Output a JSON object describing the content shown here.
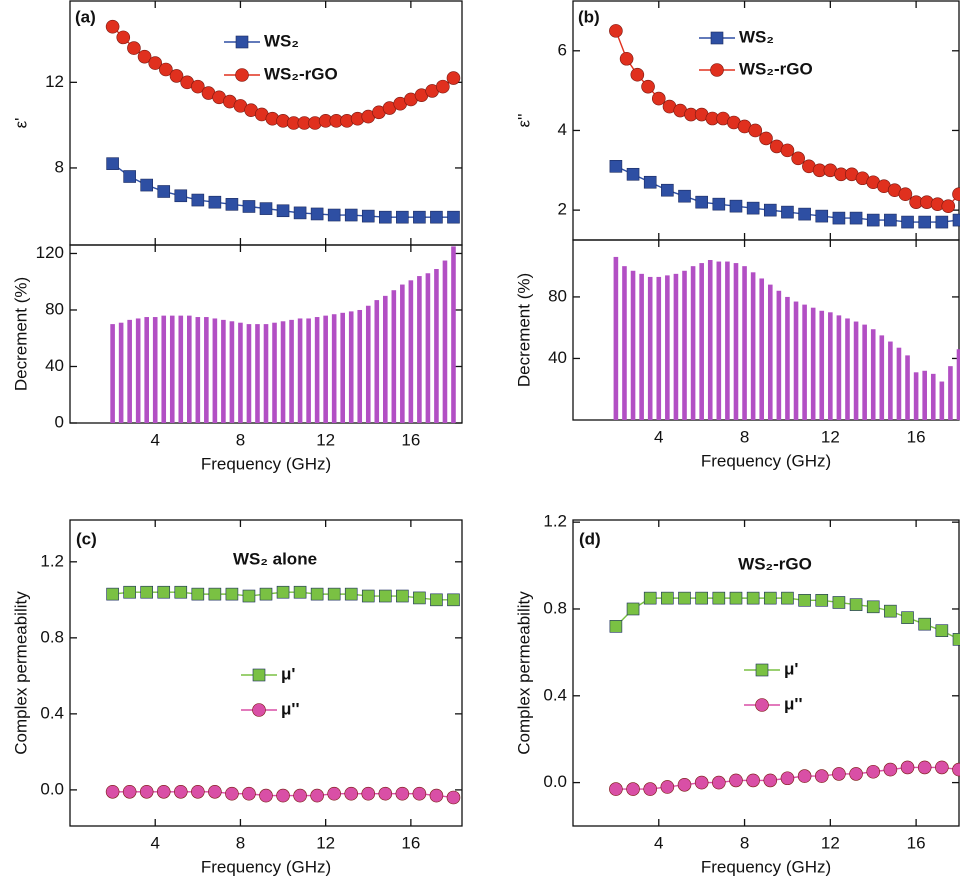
{
  "chart_data": [
    {
      "type": "line",
      "panel_label": "(a)",
      "ylabel": "ε'",
      "xlim": [
        0,
        18.4
      ],
      "ylim": [
        4.4,
        15.8
      ],
      "xticks": [
        4,
        8,
        12,
        16
      ],
      "xtick_labels": false,
      "yticks": [
        8,
        12
      ],
      "series": [
        {
          "name": "WS₂",
          "color": "#2e4fa3",
          "marker": "square",
          "x": [
            2,
            2.8,
            3.6,
            4.4,
            5.2,
            6,
            6.8,
            7.6,
            8.4,
            9.2,
            10,
            10.8,
            11.6,
            12.4,
            13.2,
            14,
            14.8,
            15.6,
            16.4,
            17.2,
            18
          ],
          "values": [
            8.2,
            7.6,
            7.2,
            6.9,
            6.7,
            6.5,
            6.4,
            6.3,
            6.2,
            6.1,
            6.0,
            5.9,
            5.85,
            5.8,
            5.8,
            5.75,
            5.7,
            5.7,
            5.7,
            5.7,
            5.7
          ]
        },
        {
          "name": "WS₂-rGO",
          "color": "#e0301e",
          "marker": "circle",
          "x": [
            2,
            2.5,
            3,
            3.5,
            4,
            4.5,
            5,
            5.5,
            6,
            6.5,
            7,
            7.5,
            8,
            8.5,
            9,
            9.5,
            10,
            10.5,
            11,
            11.5,
            12,
            12.5,
            13,
            13.5,
            14,
            14.5,
            15,
            15.5,
            16,
            16.5,
            17,
            17.5,
            18
          ],
          "values": [
            14.6,
            14.1,
            13.6,
            13.2,
            12.9,
            12.6,
            12.3,
            12.0,
            11.8,
            11.5,
            11.3,
            11.1,
            10.9,
            10.7,
            10.5,
            10.3,
            10.2,
            10.1,
            10.1,
            10.1,
            10.2,
            10.2,
            10.2,
            10.3,
            10.4,
            10.6,
            10.8,
            11.0,
            11.2,
            11.4,
            11.6,
            11.8,
            12.2
          ]
        }
      ]
    },
    {
      "type": "bar",
      "ylabel": "Decrement (%)",
      "xlabel": "Frequency (GHz)",
      "xlim": [
        0,
        18.4
      ],
      "ylim": [
        0,
        126
      ],
      "xticks": [
        4,
        8,
        12,
        16
      ],
      "xtick_labels": true,
      "yticks": [
        0,
        40,
        80,
        120
      ],
      "color": "#b24fc4",
      "x": [
        2,
        2.4,
        2.8,
        3.2,
        3.6,
        4,
        4.4,
        4.8,
        5.2,
        5.6,
        6,
        6.4,
        6.8,
        7.2,
        7.6,
        8,
        8.4,
        8.8,
        9.2,
        9.6,
        10,
        10.4,
        10.8,
        11.2,
        11.6,
        12,
        12.4,
        12.8,
        13.2,
        13.6,
        14,
        14.4,
        14.8,
        15.2,
        15.6,
        16,
        16.4,
        16.8,
        17.2,
        17.6,
        18
      ],
      "values": [
        70,
        71,
        73,
        74,
        75,
        75,
        76,
        76,
        76,
        76,
        75,
        75,
        74,
        73,
        72,
        71,
        70,
        70,
        70,
        71,
        72,
        73,
        74,
        74,
        75,
        76,
        77,
        78,
        79,
        80,
        83,
        87,
        90,
        94,
        98,
        101,
        104,
        106,
        109,
        115,
        125
      ]
    },
    {
      "type": "line",
      "panel_label": "(b)",
      "ylabel": "ε''",
      "xlim": [
        0,
        18
      ],
      "ylim": [
        1.25,
        7.25
      ],
      "xticks": [
        4,
        8,
        12,
        16
      ],
      "xtick_labels": false,
      "yticks": [
        2,
        4,
        6
      ],
      "series": [
        {
          "name": "WS₂",
          "color": "#2e4fa3",
          "marker": "square",
          "x": [
            2,
            2.8,
            3.6,
            4.4,
            5.2,
            6,
            6.8,
            7.6,
            8.4,
            9.2,
            10,
            10.8,
            11.6,
            12.4,
            13.2,
            14,
            14.8,
            15.6,
            16.4,
            17.2,
            18
          ],
          "values": [
            3.1,
            2.9,
            2.7,
            2.5,
            2.35,
            2.2,
            2.15,
            2.1,
            2.05,
            2.0,
            1.95,
            1.9,
            1.85,
            1.8,
            1.8,
            1.75,
            1.75,
            1.7,
            1.7,
            1.7,
            1.75
          ]
        },
        {
          "name": "WS₂-rGO",
          "color": "#e0301e",
          "marker": "circle",
          "x": [
            2,
            2.5,
            3,
            3.5,
            4,
            4.5,
            5,
            5.5,
            6,
            6.5,
            7,
            7.5,
            8,
            8.5,
            9,
            9.5,
            10,
            10.5,
            11,
            11.5,
            12,
            12.5,
            13,
            13.5,
            14,
            14.5,
            15,
            15.5,
            16,
            16.5,
            17,
            17.5,
            18
          ],
          "values": [
            6.5,
            5.8,
            5.4,
            5.1,
            4.8,
            4.6,
            4.5,
            4.4,
            4.4,
            4.3,
            4.3,
            4.2,
            4.1,
            4.0,
            3.8,
            3.6,
            3.5,
            3.3,
            3.1,
            3.0,
            3.0,
            2.9,
            2.9,
            2.8,
            2.7,
            2.6,
            2.5,
            2.4,
            2.2,
            2.2,
            2.15,
            2.1,
            2.4
          ]
        }
      ]
    },
    {
      "type": "bar",
      "ylabel": "Decrement (%)",
      "xlabel": "Frequency (GHz)",
      "xlim": [
        0,
        18
      ],
      "ylim": [
        0,
        117
      ],
      "xticks": [
        4,
        8,
        12,
        16
      ],
      "xtick_labels": true,
      "yticks": [
        40,
        80
      ],
      "color": "#b24fc4",
      "x": [
        2,
        2.4,
        2.8,
        3.2,
        3.6,
        4,
        4.4,
        4.8,
        5.2,
        5.6,
        6,
        6.4,
        6.8,
        7.2,
        7.6,
        8,
        8.4,
        8.8,
        9.2,
        9.6,
        10,
        10.4,
        10.8,
        11.2,
        11.6,
        12,
        12.4,
        12.8,
        13.2,
        13.6,
        14,
        14.4,
        14.8,
        15.2,
        15.6,
        16,
        16.4,
        16.8,
        17.2,
        17.6,
        18
      ],
      "values": [
        106,
        100,
        97,
        95,
        93,
        93,
        94,
        95,
        97,
        100,
        102,
        104,
        103,
        103,
        102,
        100,
        96,
        92,
        88,
        84,
        80,
        77,
        75,
        73,
        71,
        70,
        68,
        66,
        64,
        62,
        59,
        55,
        51,
        47,
        42,
        31,
        32,
        30,
        25,
        35,
        46
      ]
    },
    {
      "type": "line",
      "panel_label": "(c)",
      "title": "WS₂ alone",
      "ylabel": "Complex permeability",
      "xlabel": "Frequency (GHz)",
      "xlim": [
        0,
        18.4
      ],
      "ylim": [
        -0.19,
        1.42
      ],
      "xticks": [
        4,
        8,
        12,
        16
      ],
      "xtick_labels": true,
      "yticks": [
        {
          "value": 0,
          "label": "0.0"
        },
        0.4,
        0.8,
        1.2
      ],
      "series": [
        {
          "name": "μ'",
          "color": "#7ac143",
          "marker": "square",
          "x": [
            2,
            2.8,
            3.6,
            4.4,
            5.2,
            6,
            6.8,
            7.6,
            8.4,
            9.2,
            10,
            10.8,
            11.6,
            12.4,
            13.2,
            14,
            14.8,
            15.6,
            16.4,
            17.2,
            18
          ],
          "values": [
            1.03,
            1.04,
            1.04,
            1.04,
            1.04,
            1.03,
            1.03,
            1.03,
            1.02,
            1.03,
            1.04,
            1.04,
            1.03,
            1.03,
            1.03,
            1.02,
            1.02,
            1.02,
            1.01,
            1.0,
            1.0
          ]
        },
        {
          "name": "μ''",
          "color": "#d94fa6",
          "marker": "circle",
          "x": [
            2,
            2.8,
            3.6,
            4.4,
            5.2,
            6,
            6.8,
            7.6,
            8.4,
            9.2,
            10,
            10.8,
            11.6,
            12.4,
            13.2,
            14,
            14.8,
            15.6,
            16.4,
            17.2,
            18
          ],
          "values": [
            -0.01,
            -0.01,
            -0.01,
            -0.01,
            -0.01,
            -0.01,
            -0.01,
            -0.02,
            -0.02,
            -0.03,
            -0.03,
            -0.03,
            -0.03,
            -0.02,
            -0.02,
            -0.02,
            -0.02,
            -0.02,
            -0.02,
            -0.03,
            -0.04
          ]
        }
      ]
    },
    {
      "type": "line",
      "panel_label": "(d)",
      "title": "WS₂-rGO",
      "ylabel": "Complex permeability",
      "xlabel": "Frequency (GHz)",
      "xlim": [
        0,
        18
      ],
      "ylim": [
        -0.2,
        1.21
      ],
      "xticks": [
        4,
        8,
        12,
        16
      ],
      "xtick_labels": true,
      "yticks": [
        {
          "value": 0,
          "label": "0.0"
        },
        0.4,
        0.8,
        1.2
      ],
      "series": [
        {
          "name": "μ'",
          "color": "#7ac143",
          "marker": "square",
          "x": [
            2,
            2.8,
            3.6,
            4.4,
            5.2,
            6,
            6.8,
            7.6,
            8.4,
            9.2,
            10,
            10.8,
            11.6,
            12.4,
            13.2,
            14,
            14.8,
            15.6,
            16.4,
            17.2,
            18
          ],
          "values": [
            0.72,
            0.8,
            0.85,
            0.85,
            0.85,
            0.85,
            0.85,
            0.85,
            0.85,
            0.85,
            0.85,
            0.84,
            0.84,
            0.83,
            0.82,
            0.81,
            0.79,
            0.76,
            0.73,
            0.7,
            0.66
          ]
        },
        {
          "name": "μ''",
          "color": "#d94fa6",
          "marker": "circle",
          "x": [
            2,
            2.8,
            3.6,
            4.4,
            5.2,
            6,
            6.8,
            7.6,
            8.4,
            9.2,
            10,
            10.8,
            11.6,
            12.4,
            13.2,
            14,
            14.8,
            15.6,
            16.4,
            17.2,
            18
          ],
          "values": [
            -0.03,
            -0.03,
            -0.03,
            -0.02,
            -0.01,
            0.0,
            0.0,
            0.01,
            0.01,
            0.01,
            0.02,
            0.03,
            0.03,
            0.04,
            0.04,
            0.05,
            0.06,
            0.07,
            0.07,
            0.07,
            0.06
          ]
        }
      ]
    }
  ]
}
